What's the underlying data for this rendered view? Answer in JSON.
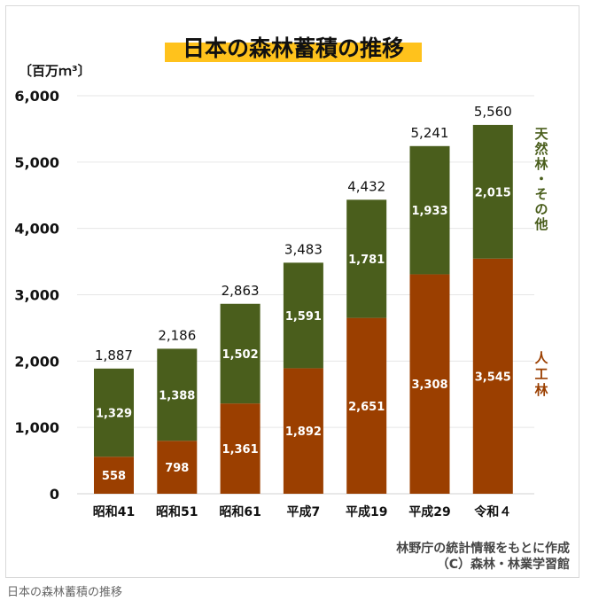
{
  "caption": "日本の森林蓄積の推移",
  "colors": {
    "planted": "#9b3f00",
    "natural": "#4a5e1c",
    "title_highlight": "#ffc21c",
    "grid": "#e6e6e6",
    "text": "#111111"
  },
  "chart_data": {
    "type": "bar",
    "stacked": true,
    "title": "日本の森林蓄積の推移",
    "ylabel": "〔百万ｍ³〕",
    "ylim": [
      0,
      6000
    ],
    "yticks": [
      "0",
      "1,000",
      "2,000",
      "3,000",
      "4,000",
      "5,000",
      "6,000"
    ],
    "categories": [
      "昭和41",
      "昭和51",
      "昭和61",
      "平成7",
      "平成19",
      "平成29",
      "令和４"
    ],
    "series": [
      {
        "name": "人工林",
        "name_chars": [
          "人",
          "工",
          "林"
        ],
        "values": [
          558,
          798,
          1361,
          1892,
          2651,
          3308,
          3545
        ],
        "labels": [
          "558",
          "798",
          "1,361",
          "1,892",
          "2,651",
          "3,308",
          "3,545"
        ]
      },
      {
        "name": "天然林・その他",
        "name_chars": [
          "天",
          "然",
          "林",
          "・",
          "そ",
          "の",
          "他"
        ],
        "values": [
          1329,
          1388,
          1502,
          1591,
          1781,
          1933,
          2015
        ],
        "labels": [
          "1,329",
          "1,388",
          "1,502",
          "1,591",
          "1,781",
          "1,933",
          "2,015"
        ]
      }
    ],
    "totals": [
      1887,
      2186,
      2863,
      3483,
      4432,
      5241,
      5560
    ],
    "total_labels": [
      "1,887",
      "2,186",
      "2,863",
      "3,483",
      "4,432",
      "5,241",
      "5,560"
    ],
    "grid": true,
    "legend": "right",
    "source": "林野庁の統計情報をもとに作成",
    "credit": "（C）森林・林業学習館"
  }
}
